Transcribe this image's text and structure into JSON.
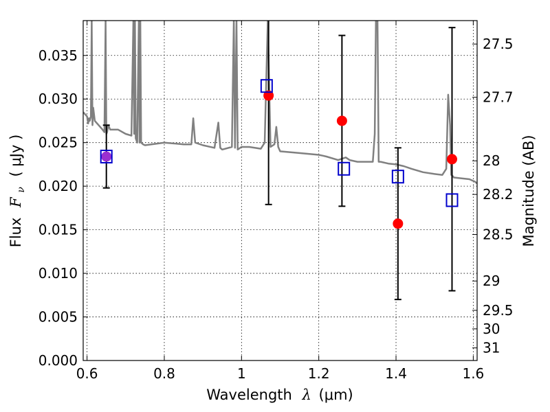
{
  "chart_data": {
    "type": "scatter",
    "title": "",
    "xlabel": {
      "prefix": "Wavelength",
      "symbol": "λ",
      "unit": "(μm)"
    },
    "ylabel": {
      "prefix": "Flux",
      "symbol": "F",
      "subscript": "ν",
      "unit": "( μJy )"
    },
    "y2label": "Magnitude (AB)",
    "xlim": [
      0.59,
      1.61
    ],
    "ylim": [
      0.0,
      0.039
    ],
    "x_ticks": [
      0.6,
      0.8,
      1.0,
      1.2,
      1.4,
      1.6
    ],
    "x_tick_labels": [
      "0.6",
      "0.8",
      "1",
      "1.2",
      "1.4",
      "1.6"
    ],
    "y_ticks": [
      0.0,
      0.005,
      0.01,
      0.015,
      0.02,
      0.025,
      0.03,
      0.035
    ],
    "y_tick_labels": [
      "0.000",
      "0.005",
      "0.010",
      "0.015",
      "0.020",
      "0.025",
      "0.030",
      "0.035"
    ],
    "y2_ticks": [
      27.5,
      27.7,
      28.0,
      28.2,
      28.5,
      29.0,
      29.5,
      30.0,
      31.0
    ],
    "y2_tick_labels": [
      "27.5",
      "27.7",
      "28",
      "28.2",
      "28.5",
      "29",
      "29.5",
      "30",
      "31"
    ],
    "grid": true,
    "colors": {
      "model": "#808080",
      "observed": "#ff0000",
      "synthetic": "#0000cc",
      "errorbar": "#000000",
      "overlap": "#9b30d0"
    },
    "observed": [
      {
        "x": 0.65,
        "y": 0.0234,
        "yerr": 0.0036
      },
      {
        "x": 1.07,
        "y": 0.0304,
        "yerr": 0.0125
      },
      {
        "x": 1.26,
        "y": 0.0275,
        "yerr": 0.0098
      },
      {
        "x": 1.405,
        "y": 0.0157,
        "yerr": 0.0087
      },
      {
        "x": 1.545,
        "y": 0.0231,
        "yerr": 0.0151
      }
    ],
    "synthetic": [
      {
        "x": 0.65,
        "y": 0.0234
      },
      {
        "x": 1.065,
        "y": 0.0315
      },
      {
        "x": 1.265,
        "y": 0.022
      },
      {
        "x": 1.405,
        "y": 0.0211
      },
      {
        "x": 1.545,
        "y": 0.0184
      }
    ],
    "model_spectrum": {
      "x": [
        0.59,
        0.6,
        0.603,
        0.605,
        0.607,
        0.61,
        0.612,
        0.614,
        0.616,
        0.62,
        0.63,
        0.64,
        0.645,
        0.648,
        0.65,
        0.652,
        0.655,
        0.66,
        0.68,
        0.7,
        0.715,
        0.72,
        0.722,
        0.724,
        0.726,
        0.73,
        0.734,
        0.736,
        0.738,
        0.74,
        0.745,
        0.75,
        0.8,
        0.85,
        0.87,
        0.875,
        0.88,
        0.9,
        0.93,
        0.94,
        0.945,
        0.95,
        0.975,
        0.98,
        0.983,
        0.987,
        0.99,
        1.0,
        1.02,
        1.05,
        1.06,
        1.068,
        1.075,
        1.085,
        1.09,
        1.095,
        1.1,
        1.15,
        1.2,
        1.21,
        1.22,
        1.25,
        1.27,
        1.28,
        1.3,
        1.34,
        1.345,
        1.348,
        1.352,
        1.355,
        1.36,
        1.38,
        1.4,
        1.42,
        1.44,
        1.47,
        1.5,
        1.52,
        1.53,
        1.535,
        1.54,
        1.543,
        1.546,
        1.55,
        1.57,
        1.59,
        1.6,
        1.605,
        1.61
      ],
      "y": [
        0.0285,
        0.028,
        0.0272,
        0.0278,
        0.0275,
        0.028,
        0.039,
        0.027,
        0.029,
        0.0275,
        0.027,
        0.0265,
        0.0262,
        0.039,
        0.026,
        0.0262,
        0.027,
        0.0265,
        0.0265,
        0.026,
        0.0258,
        0.039,
        0.026,
        0.039,
        0.0255,
        0.025,
        0.039,
        0.025,
        0.039,
        0.025,
        0.0248,
        0.0247,
        0.025,
        0.0248,
        0.0248,
        0.0278,
        0.025,
        0.0247,
        0.0244,
        0.0273,
        0.0244,
        0.0242,
        0.0245,
        0.039,
        0.0244,
        0.039,
        0.0242,
        0.0245,
        0.0245,
        0.0243,
        0.025,
        0.039,
        0.0245,
        0.0248,
        0.0268,
        0.0245,
        0.024,
        0.0238,
        0.0236,
        0.0235,
        0.0234,
        0.023,
        0.0233,
        0.023,
        0.0228,
        0.0228,
        0.026,
        0.039,
        0.039,
        0.0228,
        0.0228,
        0.0226,
        0.0225,
        0.0223,
        0.022,
        0.0216,
        0.0214,
        0.0213,
        0.022,
        0.0305,
        0.027,
        0.0213,
        0.0212,
        0.021,
        0.0209,
        0.0208,
        0.0206,
        0.0205,
        0.0203
      ]
    }
  }
}
